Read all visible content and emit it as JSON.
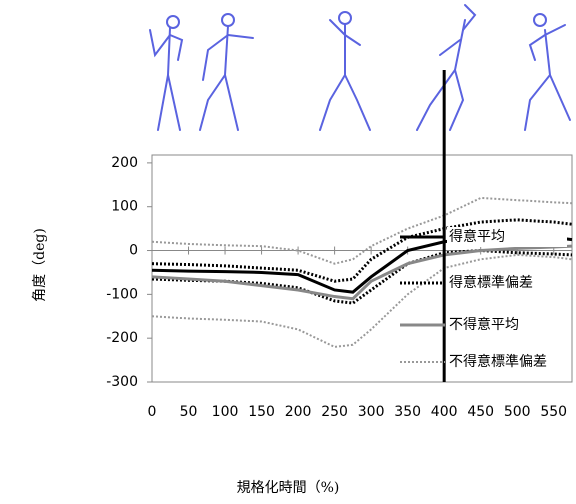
{
  "chart_data": {
    "type": "line",
    "xlabel": "規格化時間（%)",
    "ylabel": "角度（deg)",
    "x": [
      0,
      50,
      100,
      150,
      200,
      250,
      275,
      300,
      350,
      400,
      450,
      500,
      550,
      575
    ],
    "series": [
      {
        "name": "得意平均",
        "color": "#000000",
        "style": "solid",
        "width": 3,
        "values": [
          -45,
          -47,
          -48,
          -50,
          -55,
          -90,
          -95,
          -60,
          0,
          20,
          30,
          35,
          30,
          25
        ]
      },
      {
        "name": "得意標準偏差",
        "color": "#000000",
        "style": "dotted",
        "width": 3,
        "upper": [
          -30,
          -32,
          -35,
          -40,
          -45,
          -70,
          -65,
          -20,
          30,
          50,
          65,
          70,
          65,
          60
        ],
        "lower": [
          -65,
          -68,
          -70,
          -75,
          -85,
          -115,
          -120,
          -90,
          -30,
          -5,
          0,
          -5,
          -8,
          -10
        ]
      },
      {
        "name": "不得意平均",
        "color": "#888888",
        "style": "solid",
        "width": 3,
        "values": [
          -60,
          -65,
          -70,
          -80,
          -90,
          -105,
          -110,
          -70,
          -30,
          -10,
          0,
          5,
          8,
          10
        ]
      },
      {
        "name": "不得意標準偏差",
        "color": "#999999",
        "style": "dotted",
        "width": 2,
        "upper": [
          20,
          15,
          12,
          10,
          0,
          -30,
          -20,
          10,
          50,
          80,
          120,
          115,
          110,
          108
        ],
        "lower": [
          -150,
          -155,
          -158,
          -162,
          -180,
          -220,
          -215,
          -180,
          -100,
          -40,
          -20,
          -10,
          -15,
          -20
        ]
      }
    ],
    "xlim": [
      0,
      575
    ],
    "ylim": [
      -300,
      218
    ],
    "xticks": [
      0,
      50,
      100,
      150,
      200,
      250,
      300,
      350,
      400,
      450,
      500,
      550
    ],
    "yticks": [
      200,
      100,
      0,
      -100,
      -200,
      -300
    ],
    "vline": 400,
    "zero_line": true,
    "legend": "right"
  }
}
